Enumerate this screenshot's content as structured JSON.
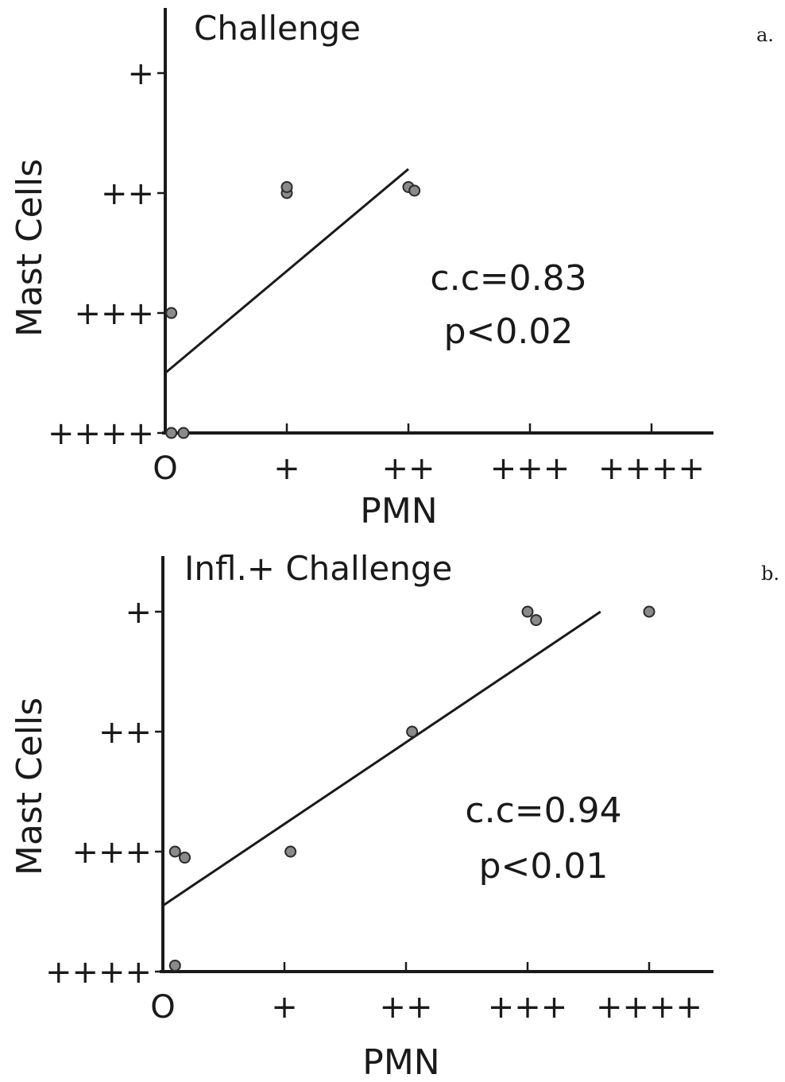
{
  "chart_data": [
    {
      "type": "scatter",
      "panel_label": "a.",
      "title": "Challenge",
      "xlabel": "PMN",
      "ylabel": "Mast Cells",
      "x_tick_labels": [
        "O",
        "+",
        "++",
        "+++",
        "++++"
      ],
      "y_tick_labels": [
        "+",
        "++",
        "+++",
        "++++"
      ],
      "xlim": [
        0,
        4.5
      ],
      "ylim": [
        0,
        4.5
      ],
      "points": [
        {
          "x": 1.0,
          "y": 3.0
        },
        {
          "x": 1.0,
          "y": 3.05
        },
        {
          "x": 2.0,
          "y": 3.05
        },
        {
          "x": 2.05,
          "y": 3.02
        },
        {
          "x": 0.05,
          "y": 2.0
        },
        {
          "x": 0.05,
          "y": 1.0
        },
        {
          "x": 0.15,
          "y": 1.0
        }
      ],
      "fit_line": {
        "x": [
          0,
          2.0
        ],
        "y": [
          1.5,
          3.2
        ]
      },
      "annotations": [
        "c.c=0.83",
        "p<0.02"
      ]
    },
    {
      "type": "scatter",
      "panel_label": "b.",
      "title": "Infl.+ Challenge",
      "xlabel": "PMN",
      "ylabel": "Mast Cells",
      "x_tick_labels": [
        "O",
        "+",
        "++",
        "+++",
        "++++"
      ],
      "y_tick_labels": [
        "+",
        "++",
        "+++",
        "++++"
      ],
      "xlim": [
        0,
        4.5
      ],
      "ylim": [
        0,
        4.5
      ],
      "points": [
        {
          "x": 3.0,
          "y": 4.0
        },
        {
          "x": 3.07,
          "y": 3.93
        },
        {
          "x": 4.0,
          "y": 4.0
        },
        {
          "x": 2.05,
          "y": 3.0
        },
        {
          "x": 1.05,
          "y": 2.0
        },
        {
          "x": 0.1,
          "y": 2.0
        },
        {
          "x": 0.18,
          "y": 1.95
        },
        {
          "x": 0.1,
          "y": 1.05
        }
      ],
      "fit_line": {
        "x": [
          0,
          3.6
        ],
        "y": [
          1.55,
          4.0
        ]
      },
      "annotations": [
        "c.c=0.94",
        "p<0.01"
      ]
    }
  ]
}
